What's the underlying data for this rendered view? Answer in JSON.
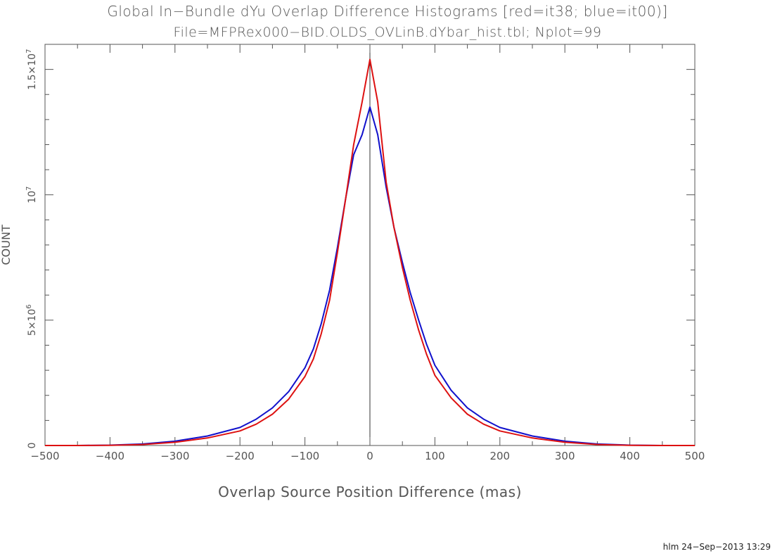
{
  "chart_data": {
    "type": "line",
    "title": "Global In−Bundle dYu Overlap Difference Histograms [red=it38; blue=it00)]",
    "subtitle": "File=MFPRex000−BID.OLDS_OVLinB.dYbar_hist.tbl; Nplot=99",
    "xlabel": "Overlap Source Position Difference (mas)",
    "ylabel": "COUNT",
    "xlim": [
      -500,
      500
    ],
    "ylim": [
      0,
      16000000
    ],
    "grid": false,
    "x_ticks": [
      {
        "value": -500,
        "label": "−500"
      },
      {
        "value": -400,
        "label": "−400"
      },
      {
        "value": -300,
        "label": "−300"
      },
      {
        "value": -200,
        "label": "−200"
      },
      {
        "value": -100,
        "label": "−100"
      },
      {
        "value": 0,
        "label": "0"
      },
      {
        "value": 100,
        "label": "100"
      },
      {
        "value": 200,
        "label": "200"
      },
      {
        "value": 300,
        "label": "300"
      },
      {
        "value": 400,
        "label": "400"
      },
      {
        "value": 500,
        "label": "500"
      }
    ],
    "y_ticks": [
      {
        "value": 0,
        "label": "0"
      },
      {
        "value": 5000000,
        "label": "5×10",
        "exp": "6"
      },
      {
        "value": 10000000,
        "label": "10",
        "exp": "7"
      },
      {
        "value": 15000000,
        "label": "1.5×10",
        "exp": "7"
      }
    ],
    "series": [
      {
        "name": "it38",
        "color": "#dd1111",
        "x": [
          -500,
          -450,
          -400,
          -350,
          -300,
          -250,
          -200,
          -175,
          -150,
          -125,
          -100,
          -87,
          -75,
          -62,
          -50,
          -37,
          -25,
          -12,
          0,
          12,
          25,
          37,
          50,
          62,
          75,
          87,
          100,
          125,
          150,
          175,
          200,
          250,
          300,
          350,
          400,
          450,
          500
        ],
        "y": [
          0,
          0,
          5000,
          40000,
          130000,
          300000,
          580000,
          850000,
          1250000,
          1850000,
          2750000,
          3450000,
          4450000,
          5800000,
          7700000,
          9900000,
          12000000,
          13700000,
          15400000,
          13700000,
          10500000,
          8700000,
          7100000,
          5800000,
          4600000,
          3650000,
          2800000,
          1900000,
          1250000,
          850000,
          580000,
          300000,
          130000,
          40000,
          5000,
          0,
          0
        ]
      },
      {
        "name": "it00",
        "color": "#1111cc",
        "x": [
          -500,
          -450,
          -400,
          -350,
          -300,
          -250,
          -200,
          -175,
          -150,
          -125,
          -100,
          -87,
          -75,
          -62,
          -50,
          -37,
          -25,
          -12,
          0,
          12,
          25,
          37,
          50,
          62,
          75,
          87,
          100,
          125,
          150,
          175,
          200,
          250,
          300,
          350,
          400,
          450,
          500
        ],
        "y": [
          0,
          0,
          15000,
          60000,
          170000,
          380000,
          720000,
          1050000,
          1500000,
          2150000,
          3100000,
          3850000,
          4850000,
          6200000,
          7900000,
          9900000,
          11600000,
          12400000,
          13500000,
          12400000,
          10300000,
          8700000,
          7300000,
          6100000,
          5000000,
          4050000,
          3200000,
          2200000,
          1500000,
          1050000,
          720000,
          380000,
          170000,
          60000,
          15000,
          0,
          0
        ]
      }
    ]
  },
  "footer": {
    "stamp": "hlm 24−Sep−2013 13:29"
  }
}
